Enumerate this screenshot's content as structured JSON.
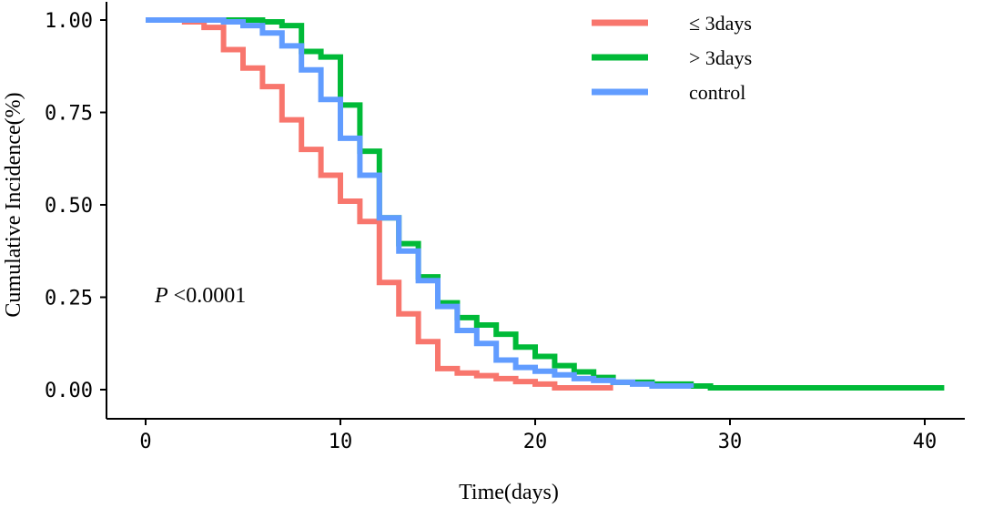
{
  "chart_data": {
    "type": "line",
    "step": true,
    "xlabel": "Time(days)",
    "ylabel": "Cumulative Incidence(%)",
    "xlim": [
      0,
      41
    ],
    "ylim": [
      0,
      1
    ],
    "xticks": [
      "0",
      "10",
      "20",
      "30",
      "40"
    ],
    "yticks": [
      "0.00",
      "0.25",
      "0.50",
      "0.75",
      "1.00"
    ],
    "grid": false,
    "legend_position": "top-right",
    "annotation": {
      "italic": "P",
      "text": " <0.0001"
    },
    "series": [
      {
        "name": "≤ 3days",
        "color": "#F8766D",
        "x": [
          0,
          2,
          3,
          4,
          5,
          6,
          7,
          8,
          9,
          10,
          11,
          12,
          13,
          14,
          15,
          16,
          17,
          18,
          19,
          20,
          21,
          24
        ],
        "y": [
          1.0,
          0.995,
          0.98,
          0.92,
          0.87,
          0.82,
          0.73,
          0.65,
          0.58,
          0.51,
          0.455,
          0.29,
          0.205,
          0.13,
          0.057,
          0.045,
          0.038,
          0.03,
          0.022,
          0.015,
          0.005,
          0.005
        ]
      },
      {
        "name": "> 3days",
        "color": "#00BA38",
        "x": [
          0,
          6,
          7,
          8,
          9,
          10,
          11,
          12,
          13,
          14,
          15,
          16,
          17,
          18,
          19,
          20,
          21,
          22,
          23,
          24,
          26,
          28,
          29,
          41
        ],
        "y": [
          1.0,
          0.995,
          0.985,
          0.915,
          0.9,
          0.77,
          0.645,
          0.465,
          0.395,
          0.305,
          0.235,
          0.195,
          0.175,
          0.15,
          0.115,
          0.09,
          0.065,
          0.048,
          0.033,
          0.02,
          0.015,
          0.01,
          0.005,
          0.005
        ]
      },
      {
        "name": "control",
        "color": "#619CFF",
        "x": [
          0,
          4,
          5,
          6,
          7,
          8,
          9,
          10,
          11,
          12,
          13,
          14,
          15,
          16,
          17,
          18,
          19,
          20,
          21,
          22,
          23,
          24,
          25,
          26,
          28
        ],
        "y": [
          1.0,
          0.995,
          0.985,
          0.965,
          0.93,
          0.865,
          0.785,
          0.68,
          0.58,
          0.465,
          0.375,
          0.295,
          0.225,
          0.16,
          0.125,
          0.08,
          0.06,
          0.05,
          0.04,
          0.03,
          0.025,
          0.02,
          0.015,
          0.01,
          0.005
        ]
      }
    ]
  }
}
